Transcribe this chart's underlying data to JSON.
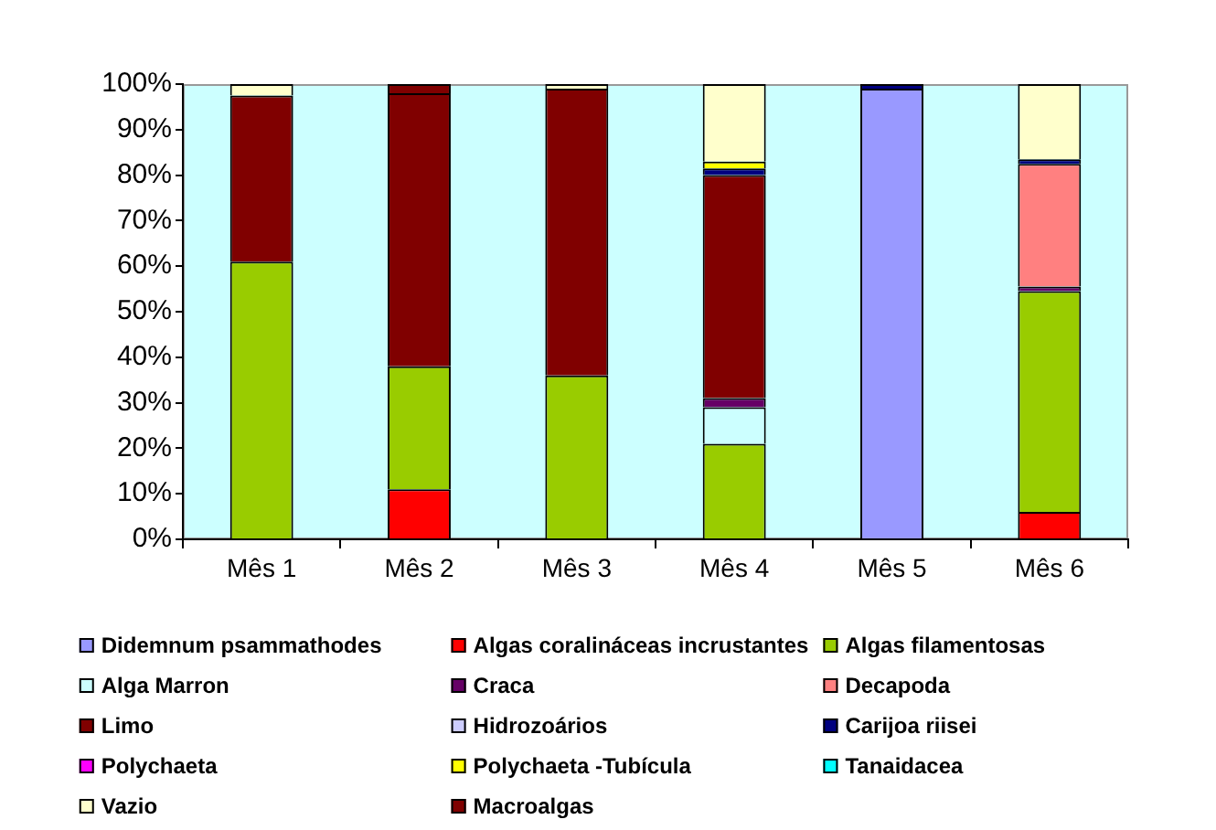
{
  "chart_data": {
    "type": "bar",
    "stacked": true,
    "categories": [
      "Mês 1",
      "Mês 2",
      "Mês 3",
      "Mês 4",
      "Mês 5",
      "Mês 6"
    ],
    "series": [
      {
        "name": "Didemnum psammathodes",
        "color": "#9999ff",
        "values": [
          0,
          0,
          0,
          0,
          99,
          0
        ]
      },
      {
        "name": "Algas coralináceas incrustantes",
        "color": "#ff0000",
        "values": [
          0,
          11,
          0,
          0,
          0,
          6
        ]
      },
      {
        "name": "Algas filamentosas",
        "color": "#99cc00",
        "values": [
          61,
          27,
          36,
          21,
          0,
          48.5
        ]
      },
      {
        "name": "Alga Marron",
        "color": "#ccffff",
        "values": [
          0,
          0,
          0,
          8,
          0,
          0
        ]
      },
      {
        "name": "Craca",
        "color": "#660066",
        "values": [
          0,
          0,
          0,
          2,
          0,
          1
        ]
      },
      {
        "name": "Decapoda",
        "color": "#ff8080",
        "values": [
          0,
          0,
          0,
          0,
          0,
          27
        ]
      },
      {
        "name": "Limo",
        "color": "#800000",
        "values": [
          36.5,
          60,
          63,
          49,
          0,
          0
        ]
      },
      {
        "name": "Hidrozoários",
        "color": "#ccccff",
        "values": [
          0,
          0,
          0,
          0,
          0,
          0
        ]
      },
      {
        "name": "Carijoa riisei",
        "color": "#000080",
        "values": [
          0,
          0,
          0,
          1.5,
          1,
          1
        ]
      },
      {
        "name": "Polychaeta",
        "color": "#ff00ff",
        "values": [
          0,
          0,
          0,
          0,
          0,
          0
        ]
      },
      {
        "name": "Polychaeta -Tubícula",
        "color": "#ffff00",
        "values": [
          0,
          0,
          0,
          1.5,
          0,
          0
        ]
      },
      {
        "name": "Tanaidacea",
        "color": "#00ffff",
        "values": [
          0,
          0,
          0,
          0,
          0,
          0
        ]
      },
      {
        "name": "Vazio",
        "color": "#ffffcc",
        "values": [
          2.5,
          0,
          1,
          17,
          0,
          16.5
        ]
      },
      {
        "name": "Macroalgas",
        "color": "#800000",
        "values": [
          0,
          2,
          0,
          0,
          0,
          0
        ]
      }
    ],
    "ylim": [
      0,
      100
    ],
    "yticks": [
      {
        "value": 0,
        "label": "0%"
      },
      {
        "value": 10,
        "label": "10%"
      },
      {
        "value": 20,
        "label": "20%"
      },
      {
        "value": 30,
        "label": "30%"
      },
      {
        "value": 40,
        "label": "40%"
      },
      {
        "value": 50,
        "label": "50%"
      },
      {
        "value": 60,
        "label": "60%"
      },
      {
        "value": 70,
        "label": "70%"
      },
      {
        "value": 80,
        "label": "80%"
      },
      {
        "value": 90,
        "label": "90%"
      },
      {
        "value": 100,
        "label": "100%"
      }
    ],
    "legend": "bottom"
  }
}
